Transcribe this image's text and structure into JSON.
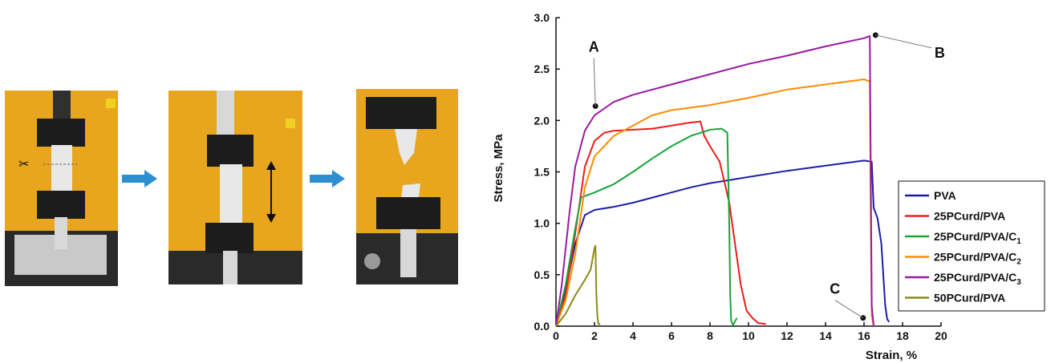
{
  "photos": [
    {
      "name": "specimen-clamped-photo",
      "has_scissors": true,
      "has_double_arrow": false
    },
    {
      "name": "specimen-stretching-photo",
      "has_scissors": false,
      "has_double_arrow": true
    },
    {
      "name": "specimen-fractured-photo",
      "has_scissors": false,
      "has_double_arrow": false
    }
  ],
  "colors": {
    "panel_yellow": "#e7a61e",
    "step_arrow": "#2e8fd0",
    "fixture_black": "#1c1c1c"
  },
  "chart_data": {
    "type": "line",
    "xlabel": "Strain, %",
    "ylabel": "Stress, MPa",
    "xlim": [
      0,
      20
    ],
    "ylim": [
      0,
      3.0
    ],
    "xticks": [
      0,
      2,
      4,
      6,
      8,
      10,
      12,
      14,
      16,
      18,
      20
    ],
    "yticks": [
      0.0,
      0.5,
      1.0,
      1.5,
      2.0,
      2.5,
      3.0
    ],
    "grid": false,
    "legend_position": "right",
    "series": [
      {
        "name": "PVA",
        "color": "#1c1ea8",
        "points": [
          [
            0,
            0
          ],
          [
            0.5,
            0.35
          ],
          [
            1.0,
            0.8
          ],
          [
            1.5,
            1.08
          ],
          [
            2.0,
            1.13
          ],
          [
            3,
            1.16
          ],
          [
            4,
            1.2
          ],
          [
            5,
            1.25
          ],
          [
            6,
            1.3
          ],
          [
            7,
            1.35
          ],
          [
            8,
            1.39
          ],
          [
            10,
            1.45
          ],
          [
            12,
            1.51
          ],
          [
            14,
            1.56
          ],
          [
            16,
            1.61
          ],
          [
            16.4,
            1.6
          ],
          [
            16.5,
            1.15
          ],
          [
            16.7,
            1.05
          ],
          [
            16.9,
            0.8
          ],
          [
            17.0,
            0.5
          ],
          [
            17.1,
            0.2
          ],
          [
            17.2,
            0.07
          ],
          [
            17.3,
            0.04
          ]
        ]
      },
      {
        "name": "25PCurd/PVA",
        "color": "#ee1c1c",
        "points": [
          [
            0,
            0
          ],
          [
            0.5,
            0.3
          ],
          [
            1.0,
            0.9
          ],
          [
            1.5,
            1.55
          ],
          [
            2.0,
            1.8
          ],
          [
            2.5,
            1.88
          ],
          [
            3,
            1.9
          ],
          [
            4,
            1.91
          ],
          [
            5,
            1.92
          ],
          [
            6,
            1.95
          ],
          [
            7,
            1.98
          ],
          [
            7.5,
            1.99
          ],
          [
            7.7,
            1.85
          ],
          [
            8,
            1.75
          ],
          [
            8.5,
            1.6
          ],
          [
            9.0,
            1.2
          ],
          [
            9.3,
            0.8
          ],
          [
            9.6,
            0.4
          ],
          [
            9.9,
            0.15
          ],
          [
            10.2,
            0.08
          ],
          [
            10.5,
            0.03
          ],
          [
            10.9,
            0.02
          ]
        ]
      },
      {
        "name": "25PCurd/PVA/C1",
        "color": "#17a43a",
        "points": [
          [
            0,
            0
          ],
          [
            0.5,
            0.4
          ],
          [
            1.0,
            0.95
          ],
          [
            1.3,
            1.25
          ],
          [
            2,
            1.3
          ],
          [
            3,
            1.38
          ],
          [
            4,
            1.5
          ],
          [
            5,
            1.63
          ],
          [
            6,
            1.75
          ],
          [
            7,
            1.85
          ],
          [
            8,
            1.91
          ],
          [
            8.6,
            1.92
          ],
          [
            8.9,
            1.88
          ],
          [
            9.0,
            1.0
          ],
          [
            9.05,
            0.3
          ],
          [
            9.1,
            0.05
          ],
          [
            9.2,
            0.01
          ],
          [
            9.4,
            0.08
          ]
        ]
      },
      {
        "name": "25PCurd/PVA/C2",
        "color": "#ff8c00",
        "points": [
          [
            0,
            0
          ],
          [
            0.5,
            0.25
          ],
          [
            1.0,
            0.7
          ],
          [
            1.5,
            1.35
          ],
          [
            2,
            1.65
          ],
          [
            3,
            1.85
          ],
          [
            4,
            1.95
          ],
          [
            5,
            2.05
          ],
          [
            6,
            2.1
          ],
          [
            8,
            2.15
          ],
          [
            10,
            2.22
          ],
          [
            12,
            2.3
          ],
          [
            14,
            2.35
          ],
          [
            16,
            2.4
          ],
          [
            16.3,
            2.38
          ],
          [
            16.35,
            1.0
          ],
          [
            16.4,
            0.1
          ],
          [
            16.5,
            0.0
          ]
        ]
      },
      {
        "name": "25PCurd/PVA/C3",
        "color": "#9a1aa0",
        "points": [
          [
            0,
            0
          ],
          [
            0.3,
            0.4
          ],
          [
            0.7,
            1.1
          ],
          [
            1.0,
            1.55
          ],
          [
            1.5,
            1.9
          ],
          [
            2,
            2.05
          ],
          [
            3,
            2.18
          ],
          [
            4,
            2.25
          ],
          [
            6,
            2.35
          ],
          [
            8,
            2.45
          ],
          [
            10,
            2.55
          ],
          [
            12,
            2.63
          ],
          [
            14,
            2.72
          ],
          [
            16,
            2.8
          ],
          [
            16.3,
            2.82
          ],
          [
            16.35,
            1.5
          ],
          [
            16.4,
            0.2
          ],
          [
            16.5,
            0.0
          ]
        ]
      },
      {
        "name": "50PCurd/PVA",
        "color": "#8c8c16",
        "points": [
          [
            0,
            0
          ],
          [
            0.5,
            0.12
          ],
          [
            1.0,
            0.3
          ],
          [
            1.5,
            0.45
          ],
          [
            1.8,
            0.55
          ],
          [
            2.0,
            0.76
          ],
          [
            2.05,
            0.78
          ],
          [
            2.1,
            0.3
          ],
          [
            2.15,
            0.1
          ],
          [
            2.2,
            0.02
          ],
          [
            2.3,
            0.02
          ]
        ]
      }
    ],
    "legend_labels": [
      {
        "text": "PVA",
        "sub": ""
      },
      {
        "text": "25PCurd/PVA",
        "sub": ""
      },
      {
        "text": "25PCurd/PVA/C",
        "sub": "1"
      },
      {
        "text": "25PCurd/PVA/C",
        "sub": "2"
      },
      {
        "text": "25PCurd/PVA/C",
        "sub": "3"
      },
      {
        "text": "50PCurd/PVA",
        "sub": ""
      }
    ],
    "annotations": [
      {
        "label": "A",
        "point": [
          2.05,
          2.14
        ]
      },
      {
        "label": "B",
        "point": [
          16.6,
          2.83
        ]
      },
      {
        "label": "C",
        "point": [
          15.95,
          0.08
        ]
      }
    ]
  }
}
